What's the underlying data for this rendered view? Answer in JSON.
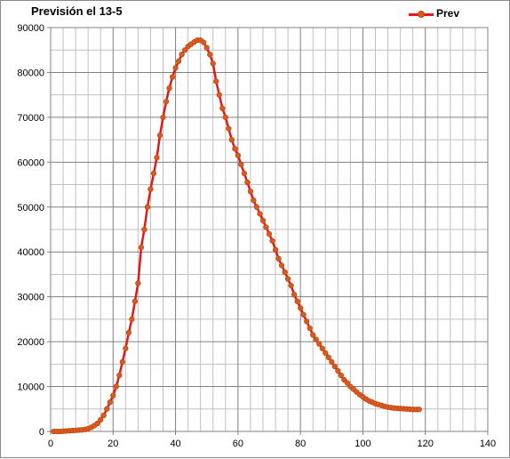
{
  "chart_data": {
    "type": "line",
    "title": "Previsión el 13-5",
    "xlabel": "",
    "ylabel": "",
    "xlim": [
      0,
      140
    ],
    "ylim": [
      0,
      90000
    ],
    "x_ticks": [
      "0",
      "20",
      "40",
      "60",
      "80",
      "100",
      "120",
      "140"
    ],
    "y_ticks": [
      "0",
      "10000",
      "20000",
      "30000",
      "40000",
      "50000",
      "60000",
      "70000",
      "80000",
      "90000"
    ],
    "grid": true,
    "legend_position": "top-right",
    "series": [
      {
        "name": "Prev",
        "color": "#e0191c",
        "marker_color": "#dd5a1e",
        "x": [
          1,
          2,
          3,
          4,
          5,
          6,
          7,
          8,
          9,
          10,
          11,
          12,
          13,
          14,
          15,
          16,
          17,
          18,
          19,
          20,
          21,
          22,
          23,
          24,
          25,
          26,
          27,
          28,
          29,
          30,
          31,
          32,
          33,
          34,
          35,
          36,
          37,
          38,
          39,
          40,
          41,
          42,
          43,
          44,
          45,
          46,
          47,
          48,
          49,
          50,
          51,
          52,
          53,
          54,
          55,
          56,
          57,
          58,
          59,
          60,
          61,
          62,
          63,
          64,
          65,
          66,
          67,
          68,
          69,
          70,
          71,
          72,
          73,
          74,
          75,
          76,
          77,
          78,
          79,
          80,
          81,
          82,
          83,
          84,
          85,
          86,
          87,
          88,
          89,
          90,
          91,
          92,
          93,
          94,
          95,
          96,
          97,
          98,
          99,
          100,
          101,
          102,
          103,
          104,
          105,
          106,
          107,
          108,
          109,
          110,
          111,
          112,
          113,
          114,
          115,
          116,
          117,
          118
        ],
        "y": [
          0,
          0,
          0,
          50,
          100,
          150,
          200,
          250,
          300,
          350,
          450,
          600,
          900,
          1300,
          1800,
          2600,
          3600,
          5000,
          6500,
          8000,
          10000,
          12500,
          15500,
          18500,
          22000,
          25000,
          29000,
          33000,
          41000,
          45000,
          50000,
          54000,
          57500,
          61000,
          66000,
          70000,
          73500,
          76500,
          79000,
          81000,
          82500,
          84000,
          85000,
          85800,
          86300,
          86800,
          87200,
          87200,
          86700,
          85500,
          84000,
          82000,
          78000,
          75000,
          72000,
          70000,
          67500,
          65000,
          63000,
          61500,
          59500,
          57500,
          55500,
          53500,
          51500,
          50000,
          48500,
          47000,
          45500,
          44000,
          42500,
          40500,
          38500,
          37000,
          35500,
          34000,
          32500,
          30500,
          29000,
          27500,
          26000,
          24500,
          23000,
          21500,
          20500,
          19500,
          18500,
          17500,
          16500,
          15500,
          14500,
          13500,
          12500,
          11500,
          10800,
          10000,
          9400,
          8800,
          8200,
          7700,
          7200,
          6800,
          6500,
          6200,
          6000,
          5800,
          5600,
          5400,
          5300,
          5200,
          5150,
          5100,
          5050,
          5000,
          4950,
          4900,
          4900,
          4900
        ]
      }
    ]
  }
}
